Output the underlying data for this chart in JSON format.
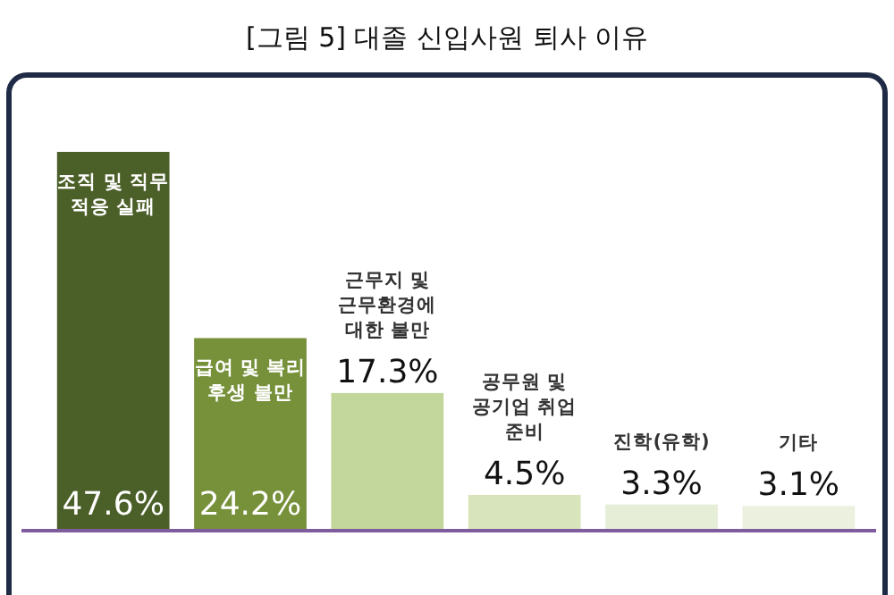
{
  "chart_data": {
    "type": "bar",
    "title": "[그림 5] 대졸 신입사원 퇴사 이유",
    "categories": [
      "조직 및 직무 적응 실패",
      "급여 및 복리 후생 불만",
      "근무지 및 근무환경에 대한 불만",
      "공무원 및 공기업 취업 준비",
      "진학(유학)",
      "기타"
    ],
    "values": [
      47.6,
      24.2,
      17.3,
      4.5,
      3.3,
      3.1
    ],
    "value_labels": [
      "47.6%",
      "24.2%",
      "17.3%",
      "4.5%",
      "3.3%",
      "3.1%"
    ],
    "colors": [
      "#4b5f28",
      "#77913b",
      "#c3d69b",
      "#d8e4bc",
      "#e6eed8",
      "#ebf1de"
    ]
  }
}
